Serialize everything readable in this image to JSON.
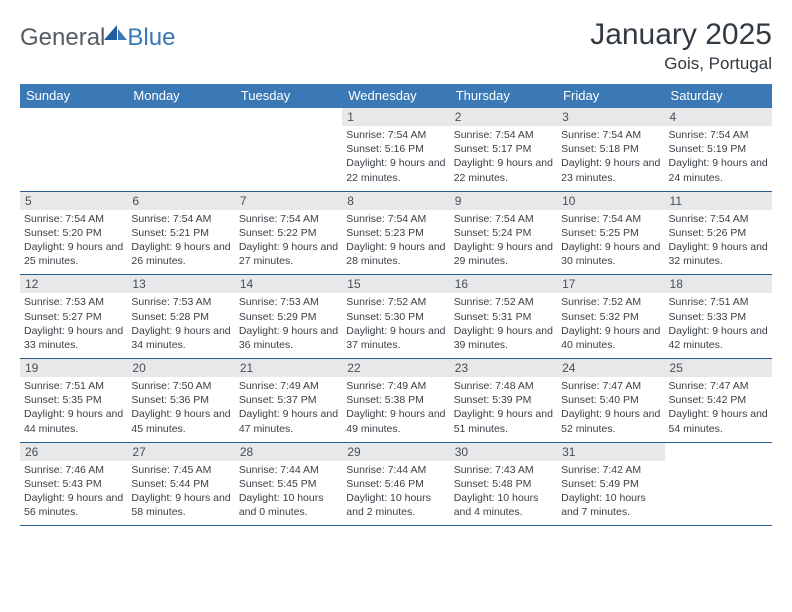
{
  "brand": {
    "name1": "General",
    "name2": "Blue"
  },
  "title": "January 2025",
  "location": "Gois, Portugal",
  "colors": {
    "header_bg": "#3a78b6",
    "header_text": "#ffffff",
    "rule": "#2b5f90",
    "daynum_bg": "#e7e8e9",
    "text": "#3a3f45"
  },
  "day_names": [
    "Sunday",
    "Monday",
    "Tuesday",
    "Wednesday",
    "Thursday",
    "Friday",
    "Saturday"
  ],
  "weeks": [
    [
      null,
      null,
      null,
      {
        "n": "1",
        "sr": "7:54 AM",
        "ss": "5:16 PM",
        "dl": "9 hours and 22 minutes."
      },
      {
        "n": "2",
        "sr": "7:54 AM",
        "ss": "5:17 PM",
        "dl": "9 hours and 22 minutes."
      },
      {
        "n": "3",
        "sr": "7:54 AM",
        "ss": "5:18 PM",
        "dl": "9 hours and 23 minutes."
      },
      {
        "n": "4",
        "sr": "7:54 AM",
        "ss": "5:19 PM",
        "dl": "9 hours and 24 minutes."
      }
    ],
    [
      {
        "n": "5",
        "sr": "7:54 AM",
        "ss": "5:20 PM",
        "dl": "9 hours and 25 minutes."
      },
      {
        "n": "6",
        "sr": "7:54 AM",
        "ss": "5:21 PM",
        "dl": "9 hours and 26 minutes."
      },
      {
        "n": "7",
        "sr": "7:54 AM",
        "ss": "5:22 PM",
        "dl": "9 hours and 27 minutes."
      },
      {
        "n": "8",
        "sr": "7:54 AM",
        "ss": "5:23 PM",
        "dl": "9 hours and 28 minutes."
      },
      {
        "n": "9",
        "sr": "7:54 AM",
        "ss": "5:24 PM",
        "dl": "9 hours and 29 minutes."
      },
      {
        "n": "10",
        "sr": "7:54 AM",
        "ss": "5:25 PM",
        "dl": "9 hours and 30 minutes."
      },
      {
        "n": "11",
        "sr": "7:54 AM",
        "ss": "5:26 PM",
        "dl": "9 hours and 32 minutes."
      }
    ],
    [
      {
        "n": "12",
        "sr": "7:53 AM",
        "ss": "5:27 PM",
        "dl": "9 hours and 33 minutes."
      },
      {
        "n": "13",
        "sr": "7:53 AM",
        "ss": "5:28 PM",
        "dl": "9 hours and 34 minutes."
      },
      {
        "n": "14",
        "sr": "7:53 AM",
        "ss": "5:29 PM",
        "dl": "9 hours and 36 minutes."
      },
      {
        "n": "15",
        "sr": "7:52 AM",
        "ss": "5:30 PM",
        "dl": "9 hours and 37 minutes."
      },
      {
        "n": "16",
        "sr": "7:52 AM",
        "ss": "5:31 PM",
        "dl": "9 hours and 39 minutes."
      },
      {
        "n": "17",
        "sr": "7:52 AM",
        "ss": "5:32 PM",
        "dl": "9 hours and 40 minutes."
      },
      {
        "n": "18",
        "sr": "7:51 AM",
        "ss": "5:33 PM",
        "dl": "9 hours and 42 minutes."
      }
    ],
    [
      {
        "n": "19",
        "sr": "7:51 AM",
        "ss": "5:35 PM",
        "dl": "9 hours and 44 minutes."
      },
      {
        "n": "20",
        "sr": "7:50 AM",
        "ss": "5:36 PM",
        "dl": "9 hours and 45 minutes."
      },
      {
        "n": "21",
        "sr": "7:49 AM",
        "ss": "5:37 PM",
        "dl": "9 hours and 47 minutes."
      },
      {
        "n": "22",
        "sr": "7:49 AM",
        "ss": "5:38 PM",
        "dl": "9 hours and 49 minutes."
      },
      {
        "n": "23",
        "sr": "7:48 AM",
        "ss": "5:39 PM",
        "dl": "9 hours and 51 minutes."
      },
      {
        "n": "24",
        "sr": "7:47 AM",
        "ss": "5:40 PM",
        "dl": "9 hours and 52 minutes."
      },
      {
        "n": "25",
        "sr": "7:47 AM",
        "ss": "5:42 PM",
        "dl": "9 hours and 54 minutes."
      }
    ],
    [
      {
        "n": "26",
        "sr": "7:46 AM",
        "ss": "5:43 PM",
        "dl": "9 hours and 56 minutes."
      },
      {
        "n": "27",
        "sr": "7:45 AM",
        "ss": "5:44 PM",
        "dl": "9 hours and 58 minutes."
      },
      {
        "n": "28",
        "sr": "7:44 AM",
        "ss": "5:45 PM",
        "dl": "10 hours and 0 minutes."
      },
      {
        "n": "29",
        "sr": "7:44 AM",
        "ss": "5:46 PM",
        "dl": "10 hours and 2 minutes."
      },
      {
        "n": "30",
        "sr": "7:43 AM",
        "ss": "5:48 PM",
        "dl": "10 hours and 4 minutes."
      },
      {
        "n": "31",
        "sr": "7:42 AM",
        "ss": "5:49 PM",
        "dl": "10 hours and 7 minutes."
      },
      null
    ]
  ],
  "labels": {
    "sunrise": "Sunrise:",
    "sunset": "Sunset:",
    "daylight": "Daylight:"
  }
}
